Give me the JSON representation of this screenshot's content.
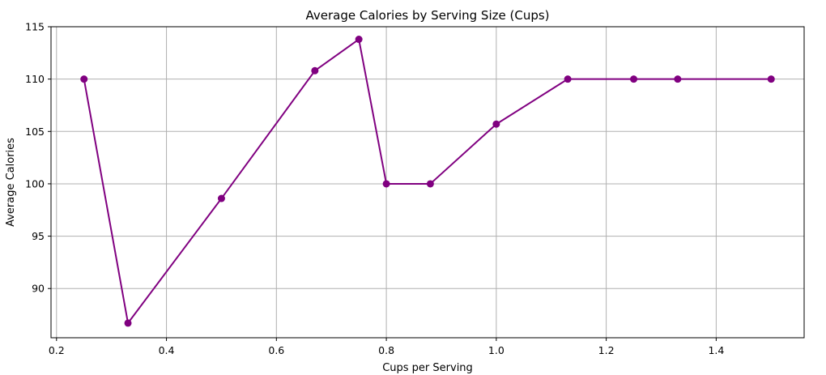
{
  "chart_data": {
    "type": "line",
    "title": "Average Calories by Serving Size (Cups)",
    "xlabel": "Cups per Serving",
    "ylabel": "Average Calories",
    "xlim": [
      0.19,
      1.56
    ],
    "ylim": [
      85.3,
      115.0
    ],
    "xticks": [
      0.2,
      0.4,
      0.6,
      0.8,
      1.0,
      1.2,
      1.4
    ],
    "yticks": [
      90,
      95,
      100,
      105,
      110,
      115
    ],
    "grid": true,
    "color": "#800080",
    "marker": "circle",
    "series": [
      {
        "x": [
          0.25,
          0.33,
          0.5,
          0.67,
          0.75,
          0.8,
          0.88,
          1.0,
          1.13,
          1.25,
          1.33,
          1.5
        ],
        "y": [
          110,
          86.7,
          98.6,
          110.8,
          113.8,
          100,
          100,
          105.7,
          110,
          110,
          110,
          110
        ]
      }
    ]
  }
}
